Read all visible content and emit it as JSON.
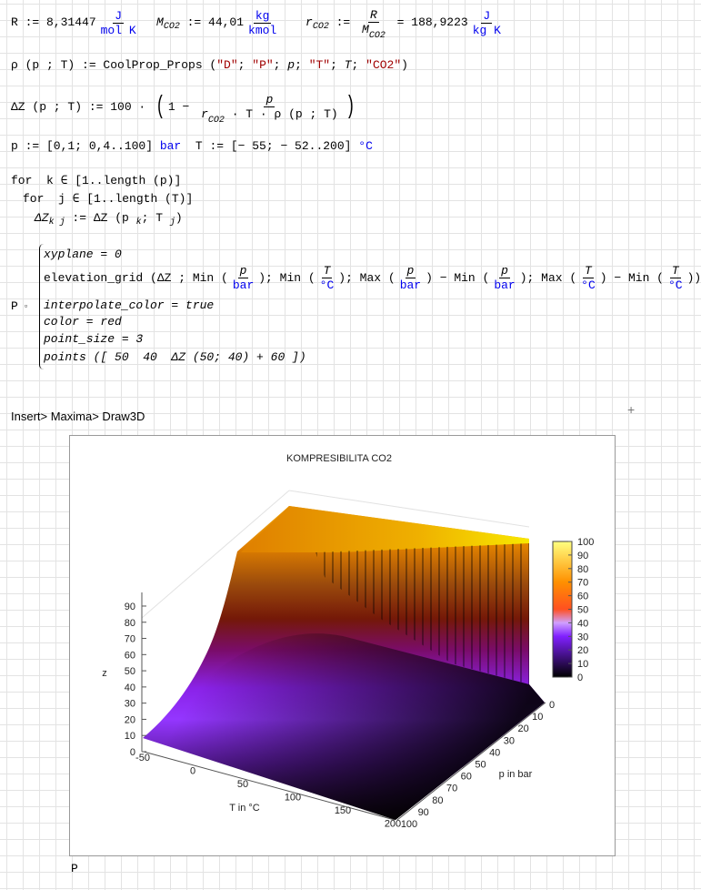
{
  "line1": {
    "R_def": "R := 8,31447",
    "R_num": "J",
    "R_den": "mol K",
    "M_var": "M",
    "M_sub": "CO2",
    "M_def": " := 44,01",
    "M_num": "kg",
    "M_den": "kmol",
    "r_var": "r",
    "r_sub": "CO2",
    "assign": " := ",
    "frac_num": "R",
    "frac_den_var": "M",
    "frac_den_sub": "CO2",
    "r_val": " = 188,9223",
    "r_unit_num": "J",
    "r_unit_den": "kg K"
  },
  "line2": {
    "lhs": "ρ (p ; T) := CoolProp_Props (",
    "a1": "\"D\"",
    "sep": "; ",
    "a2": "\"P\"",
    "a3": "p",
    "a4": "\"T\"",
    "a5": "T",
    "a6": "\"CO2\"",
    "close": ")"
  },
  "line3": {
    "lhs": "ΔZ (p ; T) := 100 · ",
    "open": "(",
    "one": "1 − ",
    "num": "p",
    "den_var": "r",
    "den_sub": "CO2",
    "den_rest": " · T · ρ (p ; T)",
    "close": ")"
  },
  "line4": {
    "p_def": "p := [0,1; 0,4..100] ",
    "p_unit": "bar",
    "T_def": "  T := [− 55; − 52..200] ",
    "T_unit": "°C"
  },
  "loop": {
    "l1": "for  k ∈ [1..length (p)]",
    "l2": "for  j ∈ [1..length (T)]",
    "l3_lhs": "ΔZ",
    "l3_sub": "k j",
    "l3_mid": " := ΔZ (p ",
    "l3_k": "k",
    "l3_sep": "; T ",
    "l3_j": "j",
    "l3_end": ")"
  },
  "block": {
    "name": "P",
    "marker": "▫",
    "l1": "xyplane = 0",
    "l2_a": "elevation_grid (ΔZ ; Min (",
    "p": "p",
    "bar": "bar",
    "l2_b": "); Min (",
    "T": "T",
    "degC": "°C",
    "l2_c": "); Max (",
    "l2_d": ") − Min (",
    "l2_e": "); Max (",
    "l2_f": ") − Min (",
    "l2_g": "))",
    "l3": "interpolate_color = true",
    "l4": "color = red",
    "l5": "point_size = 3",
    "l6": "points ([ 50  40  ΔZ (50; 40) + 60 ])"
  },
  "hint": "Insert> Maxima> Draw3D",
  "cursor": "+",
  "result_name": "P",
  "chart_data": {
    "type": "surface",
    "title": "KOMPRESIBILITA CO2",
    "xlabel": "T in °C",
    "ylabel": "p in bar",
    "zlabel": "z",
    "xlim": [
      -55,
      200
    ],
    "ylim": [
      0,
      100
    ],
    "zlim": [
      0,
      100
    ],
    "x_ticks": [
      "-50",
      "0",
      "50",
      "100",
      "150",
      "200"
    ],
    "y_ticks": [
      "0",
      "10",
      "20",
      "30",
      "40",
      "50",
      "60",
      "70",
      "80",
      "90",
      "100"
    ],
    "z_ticks": [
      "0",
      "10",
      "20",
      "30",
      "40",
      "50",
      "60",
      "70",
      "80",
      "90"
    ],
    "colorbar": {
      "ticks": [
        "0",
        "10",
        "20",
        "30",
        "40",
        "50",
        "60",
        "70",
        "80",
        "90",
        "100"
      ],
      "range": [
        0,
        100
      ],
      "palette": [
        "#000000",
        "#7f00ff",
        "#ff4000",
        "#ffff00"
      ]
    },
    "grid": false,
    "legend": "none"
  }
}
